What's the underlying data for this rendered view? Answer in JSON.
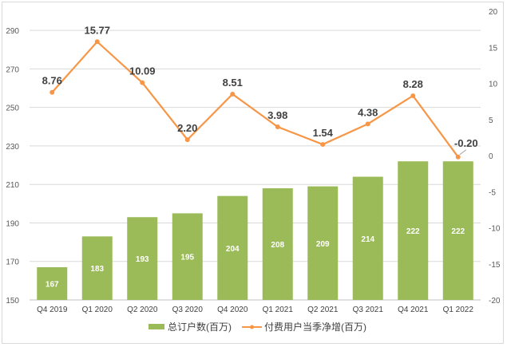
{
  "chart_data": {
    "type": "bar+line",
    "categories": [
      "Q4 2019",
      "Q1 2020",
      "Q2 2020",
      "Q3 2020",
      "Q4 2020",
      "Q1 2021",
      "Q2 2021",
      "Q3 2021",
      "Q4 2021",
      "Q1 2022"
    ],
    "series": [
      {
        "name": "总订户数(百万)",
        "type": "bar",
        "axis": "left",
        "color": "#9bbb59",
        "values": [
          167,
          183,
          193,
          195,
          204,
          208,
          209,
          214,
          222,
          222
        ]
      },
      {
        "name": "付费用户当季净增(百万)",
        "type": "line",
        "axis": "right",
        "color": "#f79646",
        "values": [
          8.76,
          15.77,
          10.09,
          2.2,
          8.51,
          3.98,
          1.54,
          4.38,
          8.28,
          -0.2
        ],
        "labels": [
          "8.76",
          "15.77",
          "10.09",
          "2.20",
          "8.51",
          "3.98",
          "1.54",
          "4.38",
          "8.28",
          "-0.20"
        ]
      }
    ],
    "left_axis": {
      "range": [
        150,
        300
      ],
      "ticks": [
        150,
        170,
        190,
        210,
        230,
        250,
        270,
        290
      ]
    },
    "right_axis": {
      "range": [
        -20,
        20
      ],
      "ticks": [
        -20,
        -15,
        -10,
        -5,
        0,
        5,
        10,
        15,
        20
      ]
    },
    "negative_label_color": "#ff0000",
    "grid": true,
    "legend": "bottom"
  }
}
